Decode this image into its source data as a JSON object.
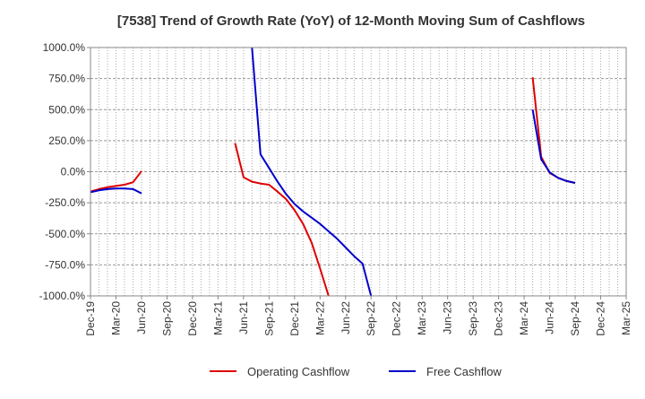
{
  "chart_data": {
    "type": "line",
    "title": "[7538]  Trend of Growth Rate (YoY) of 12-Month Moving Sum of Cashflows",
    "xlabel": "",
    "ylabel": "",
    "ylim": [
      -1000,
      1000
    ],
    "y_ticks": [
      1000,
      750,
      500,
      250,
      0,
      -250,
      -500,
      -750,
      -1000
    ],
    "y_tick_labels": [
      "1000.0%",
      "750.0%",
      "500.0%",
      "250.0%",
      "0.0%",
      "-250.0%",
      "-500.0%",
      "-750.0%",
      "-1000.0%"
    ],
    "x_ticks": [
      "Dec-19",
      "Mar-20",
      "Jun-20",
      "Sep-20",
      "Dec-20",
      "Mar-21",
      "Jun-21",
      "Sep-21",
      "Dec-21",
      "Mar-22",
      "Jun-22",
      "Sep-22",
      "Dec-22",
      "Mar-23",
      "Jun-23",
      "Sep-23",
      "Dec-23",
      "Mar-24",
      "Jun-24",
      "Sep-24",
      "Dec-24",
      "Mar-25"
    ],
    "x_range": [
      "2019-12",
      "2025-03"
    ],
    "grid": true,
    "legend_position": "bottom",
    "series": [
      {
        "name": "Operating Cashflow",
        "color": "#dd0000",
        "points": [
          [
            "2019-12",
            -160
          ],
          [
            "2020-01",
            -140
          ],
          [
            "2020-02",
            -125
          ],
          [
            "2020-03",
            -115
          ],
          [
            "2020-04",
            -105
          ],
          [
            "2020-05",
            -85
          ],
          [
            "2020-06",
            5
          ],
          null,
          [
            "2021-05",
            230
          ],
          [
            "2021-06",
            -45
          ],
          [
            "2021-07",
            -80
          ],
          [
            "2021-08",
            -95
          ],
          [
            "2021-09",
            -105
          ],
          [
            "2021-10",
            -160
          ],
          [
            "2021-11",
            -220
          ],
          [
            "2021-12",
            -310
          ],
          [
            "2022-01",
            -420
          ],
          [
            "2022-02",
            -570
          ],
          [
            "2022-03",
            -780
          ],
          [
            "2022-04",
            -1000
          ],
          null,
          [
            "2024-04",
            760
          ],
          [
            "2024-05",
            120
          ],
          [
            "2024-06",
            -10
          ],
          [
            "2024-07",
            -50
          ],
          [
            "2024-08",
            -75
          ],
          [
            "2024-09",
            -90
          ]
        ]
      },
      {
        "name": "Free Cashflow",
        "color": "#0000cc",
        "points": [
          [
            "2019-12",
            -165
          ],
          [
            "2020-01",
            -150
          ],
          [
            "2020-02",
            -140
          ],
          [
            "2020-03",
            -135
          ],
          [
            "2020-04",
            -135
          ],
          [
            "2020-05",
            -140
          ],
          [
            "2020-06",
            -175
          ],
          null,
          [
            "2021-07",
            1000
          ],
          [
            "2021-08",
            140
          ],
          [
            "2021-09",
            30
          ],
          [
            "2021-10",
            -80
          ],
          [
            "2021-11",
            -180
          ],
          [
            "2021-12",
            -260
          ],
          [
            "2022-01",
            -320
          ],
          [
            "2022-02",
            -370
          ],
          [
            "2022-03",
            -420
          ],
          [
            "2022-04",
            -480
          ],
          [
            "2022-05",
            -540
          ],
          [
            "2022-06",
            -610
          ],
          [
            "2022-07",
            -680
          ],
          [
            "2022-08",
            -740
          ],
          [
            "2022-09",
            -1000
          ],
          null,
          [
            "2024-04",
            500
          ],
          [
            "2024-05",
            100
          ],
          [
            "2024-06",
            -5
          ],
          [
            "2024-07",
            -50
          ],
          [
            "2024-08",
            -75
          ],
          [
            "2024-09",
            -90
          ]
        ]
      }
    ]
  }
}
